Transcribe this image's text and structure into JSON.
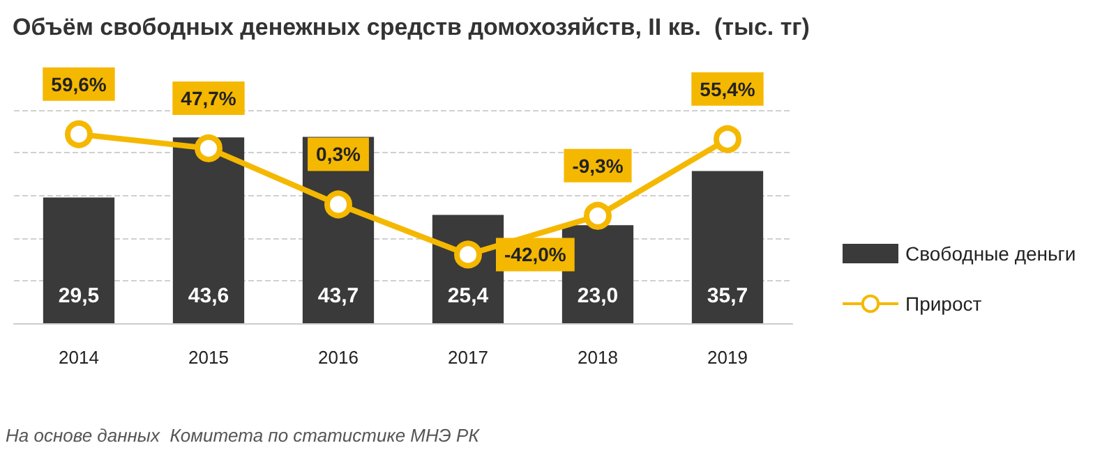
{
  "chart_data": {
    "type": "bar",
    "title": "Объём свободных денежных средств домохозяйств, II кв.  (тыс. тг)",
    "categories": [
      "2014",
      "2015",
      "2016",
      "2017",
      "2018",
      "2019"
    ],
    "series": [
      {
        "name": "Свободные деньги",
        "type": "bar",
        "color": "#3a3a3a",
        "values": [
          29.5,
          43.6,
          43.7,
          25.4,
          23.0,
          35.7
        ],
        "value_labels": [
          "29,5",
          "43,6",
          "43,7",
          "25,4",
          "23,0",
          "35,7"
        ]
      },
      {
        "name": "Прирост",
        "type": "line",
        "axis": "y2",
        "color": "#f5b800",
        "values": [
          59.6,
          47.7,
          0.3,
          -42.0,
          -9.3,
          55.4
        ],
        "value_labels": [
          "59,6%",
          "47,7%",
          "0,3%",
          "-42,0%",
          "-9,3%",
          "55,4%"
        ]
      }
    ],
    "ylim": [
      0,
      50
    ],
    "yticks": [
      {
        "value": 0,
        "label": null
      },
      {
        "value": 10,
        "label": null
      },
      {
        "value": 20,
        "label": null
      },
      {
        "value": 30,
        "label": null
      },
      {
        "value": 40,
        "label": null
      },
      {
        "value": 50,
        "label": null
      }
    ],
    "y2lim": [
      -100,
      80
    ],
    "tick_labels": "x",
    "grid": "y",
    "legend": "right",
    "marker": "circle",
    "line_style": "solid",
    "annotations": [
      "На основе данных  Комитета по статистике МНЭ РК"
    ]
  }
}
